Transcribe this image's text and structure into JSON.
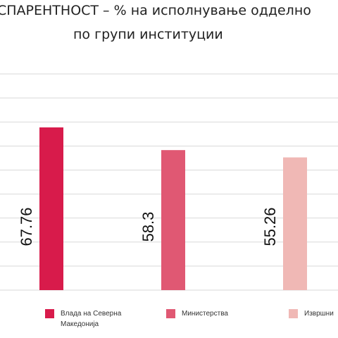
{
  "title_lines": [
    "СПАРЕНТНОСТ – % на исполнување одделно",
    "по групи институции"
  ],
  "chart_data": {
    "type": "bar",
    "categories": [
      "Влада на Северна Македонија",
      "Министерства",
      "Извршни"
    ],
    "values": [
      67.76,
      58.3,
      55.26
    ],
    "data_labels": [
      "67.76",
      "58.3",
      "55.26"
    ],
    "colors": [
      "#d81b4b",
      "#e05873",
      "#f0b8b5"
    ],
    "grid": true,
    "legend_position": "bottom"
  },
  "legend": [
    {
      "label": "Влада на Северна Македонија",
      "color": "#d81b4b"
    },
    {
      "label": "Министерства",
      "color": "#e05873"
    },
    {
      "label": "Извршни",
      "color": "#f0b8b5"
    }
  ],
  "ylim": [
    0,
    95
  ],
  "gridlines": [
    0,
    10,
    20,
    30,
    40,
    50,
    60,
    70,
    80,
    90
  ]
}
